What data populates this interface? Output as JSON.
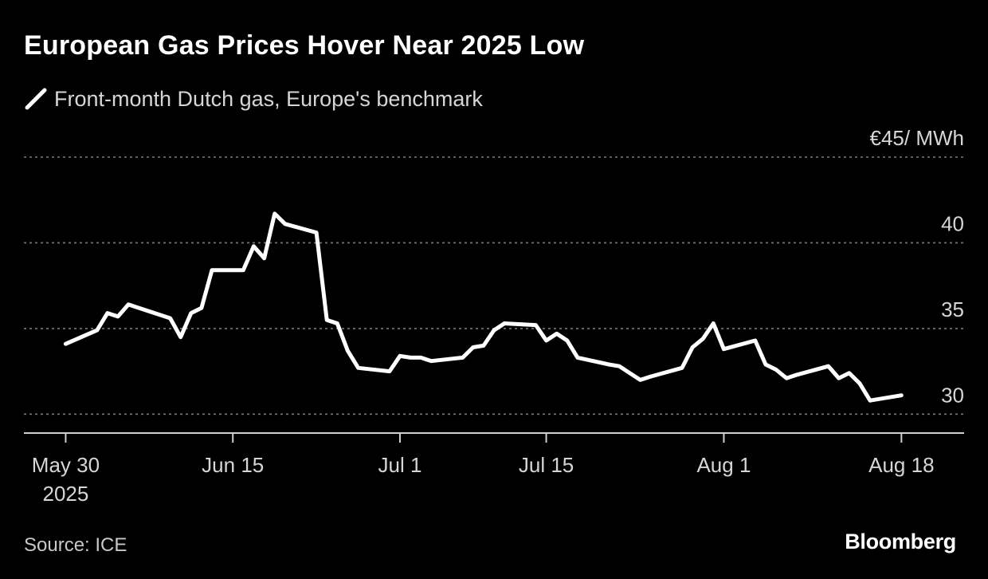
{
  "title": "European Gas Prices Hover Near 2025 Low",
  "legend": {
    "label": "Front-month Dutch gas, Europe's benchmark",
    "icon": "line-swatch-icon"
  },
  "source": "Source: ICE",
  "brand": "Bloomberg",
  "colors": {
    "background": "#000000",
    "line": "#ffffff",
    "grid": "#7a7a7a",
    "text": "#d6d6d6"
  },
  "chart_data": {
    "type": "line",
    "title": "European Gas Prices Hover Near 2025 Low",
    "xlabel": "",
    "ylabel": "€/MWh",
    "unit_label": "€45/ MWh",
    "ylim": [
      28.9,
      45
    ],
    "xlim": [
      "2025-05-26",
      "2025-08-24"
    ],
    "grid": true,
    "legend_position": "top-left",
    "y_ticks": [
      {
        "value": 45,
        "label": "€45/ MWh"
      },
      {
        "value": 40,
        "label": "40"
      },
      {
        "value": 35,
        "label": "35"
      },
      {
        "value": 30,
        "label": "30"
      }
    ],
    "x_ticks": [
      {
        "date": "2025-05-30",
        "label": "May 30",
        "sublabel": "2025"
      },
      {
        "date": "2025-06-15",
        "label": "Jun 15"
      },
      {
        "date": "2025-07-01",
        "label": "Jul 1"
      },
      {
        "date": "2025-07-15",
        "label": "Jul 15"
      },
      {
        "date": "2025-08-01",
        "label": "Aug 1"
      },
      {
        "date": "2025-08-18",
        "label": "Aug 18"
      }
    ],
    "series": [
      {
        "name": "Front-month Dutch gas, Europe's benchmark",
        "points": [
          [
            "2025-05-30",
            34.1
          ],
          [
            "2025-06-02",
            34.9
          ],
          [
            "2025-06-03",
            35.9
          ],
          [
            "2025-06-04",
            35.7
          ],
          [
            "2025-06-05",
            36.4
          ],
          [
            "2025-06-06",
            36.2
          ],
          [
            "2025-06-09",
            35.6
          ],
          [
            "2025-06-10",
            34.5
          ],
          [
            "2025-06-11",
            35.9
          ],
          [
            "2025-06-12",
            36.2
          ],
          [
            "2025-06-13",
            38.4
          ],
          [
            "2025-06-16",
            38.4
          ],
          [
            "2025-06-17",
            39.8
          ],
          [
            "2025-06-18",
            39.1
          ],
          [
            "2025-06-19",
            41.7
          ],
          [
            "2025-06-20",
            41.1
          ],
          [
            "2025-06-23",
            40.6
          ],
          [
            "2025-06-24",
            35.5
          ],
          [
            "2025-06-25",
            35.3
          ],
          [
            "2025-06-26",
            33.7
          ],
          [
            "2025-06-27",
            32.7
          ],
          [
            "2025-06-30",
            32.5
          ],
          [
            "2025-07-01",
            33.4
          ],
          [
            "2025-07-02",
            33.3
          ],
          [
            "2025-07-03",
            33.3
          ],
          [
            "2025-07-04",
            33.1
          ],
          [
            "2025-07-07",
            33.3
          ],
          [
            "2025-07-08",
            33.9
          ],
          [
            "2025-07-09",
            34.0
          ],
          [
            "2025-07-10",
            34.9
          ],
          [
            "2025-07-11",
            35.3
          ],
          [
            "2025-07-14",
            35.2
          ],
          [
            "2025-07-15",
            34.3
          ],
          [
            "2025-07-16",
            34.7
          ],
          [
            "2025-07-17",
            34.3
          ],
          [
            "2025-07-18",
            33.3
          ],
          [
            "2025-07-21",
            32.9
          ],
          [
            "2025-07-22",
            32.8
          ],
          [
            "2025-07-23",
            32.4
          ],
          [
            "2025-07-24",
            32.0
          ],
          [
            "2025-07-25",
            32.2
          ],
          [
            "2025-07-28",
            32.7
          ],
          [
            "2025-07-29",
            33.9
          ],
          [
            "2025-07-30",
            34.4
          ],
          [
            "2025-07-31",
            35.3
          ],
          [
            "2025-08-01",
            33.8
          ],
          [
            "2025-08-04",
            34.3
          ],
          [
            "2025-08-05",
            32.9
          ],
          [
            "2025-08-06",
            32.6
          ],
          [
            "2025-08-07",
            32.1
          ],
          [
            "2025-08-08",
            32.3
          ],
          [
            "2025-08-11",
            32.8
          ],
          [
            "2025-08-12",
            32.1
          ],
          [
            "2025-08-13",
            32.4
          ],
          [
            "2025-08-14",
            31.8
          ],
          [
            "2025-08-15",
            30.8
          ],
          [
            "2025-08-18",
            31.1
          ]
        ]
      }
    ]
  }
}
